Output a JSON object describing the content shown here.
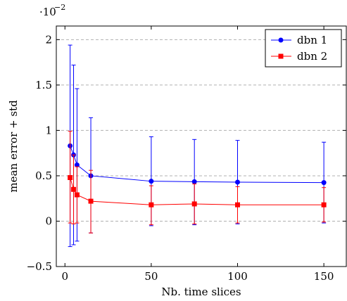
{
  "chart_data": {
    "type": "line",
    "title": "",
    "xlabel": "Nb. time slices",
    "ylabel": "mean error + std",
    "y_scale_note": "·10",
    "y_scale_exponent": "−2",
    "xlim": [
      -5,
      163
    ],
    "ylim": [
      -0.5,
      2.15
    ],
    "xticks": [
      0,
      50,
      100,
      150
    ],
    "xtick_labels": [
      "0",
      "50",
      "100",
      "150"
    ],
    "yticks": [
      -0.5,
      0,
      0.5,
      1,
      1.5,
      2
    ],
    "ytick_labels": [
      "−0.5",
      "0",
      "0.5",
      "1",
      "1.5",
      "2"
    ],
    "grid": "horizontal dashed",
    "legend_position": "top-right",
    "series": [
      {
        "name": "dbn 1",
        "color": "#0000ff",
        "marker": "circle",
        "x": [
          3,
          5,
          7,
          15,
          50,
          75,
          100,
          150
        ],
        "y": [
          0.83,
          0.73,
          0.62,
          0.5,
          0.44,
          0.435,
          0.43,
          0.425
        ],
        "err_low": [
          -0.28,
          -0.26,
          -0.22,
          -0.13,
          -0.05,
          -0.04,
          -0.03,
          -0.02
        ],
        "err_high": [
          1.94,
          1.72,
          1.46,
          1.14,
          0.93,
          0.9,
          0.89,
          0.87
        ]
      },
      {
        "name": "dbn 2",
        "color": "#ff0000",
        "marker": "square",
        "x": [
          3,
          5,
          7,
          15,
          50,
          75,
          100,
          150
        ],
        "y": [
          0.48,
          0.35,
          0.29,
          0.22,
          0.18,
          0.19,
          0.18,
          0.18
        ],
        "err_low": [
          -0.02,
          -0.03,
          -0.02,
          -0.13,
          -0.04,
          -0.03,
          -0.02,
          -0.01
        ],
        "err_high": [
          0.99,
          0.73,
          0.6,
          0.56,
          0.39,
          0.41,
          0.38,
          0.37
        ]
      }
    ]
  }
}
